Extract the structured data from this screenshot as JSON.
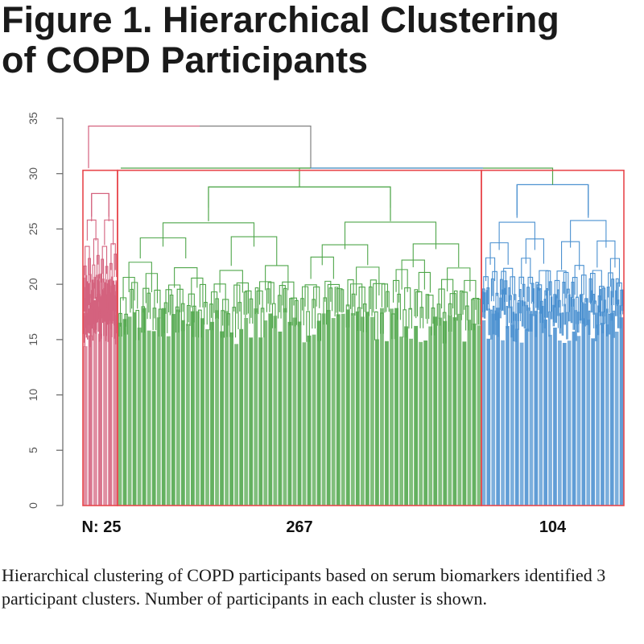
{
  "title_lines": [
    "Figure 1.  Hierarchical Clustering",
    "of COPD Participants"
  ],
  "caption": "Hierarchical clustering of COPD participants  based on serum biomarkers identified 3 participant clusters. Number of participants in each cluster is shown.",
  "chart_data": {
    "type": "dendrogram",
    "ylim": [
      0,
      35
    ],
    "yticks": [
      "0",
      "5",
      "10",
      "15",
      "20",
      "25",
      "30",
      "35"
    ],
    "root_height": 30.5,
    "top_merge_height": 34.3,
    "left_branch_height": 30.5,
    "clusters": [
      {
        "label": "N: 25",
        "count": 25,
        "color": "#d4627e",
        "box_color": "#e8474c",
        "merge_height": 30.3,
        "sub_merges": [
          28.2,
          26.1,
          24.2,
          22.8,
          21.5,
          20.4,
          19.6
        ]
      },
      {
        "label": "267",
        "count": 267,
        "color": "#4fa64a",
        "box_color": "#e8474c",
        "merge_height": 30.3,
        "sub_merges": [
          28.8,
          25.7,
          24.3,
          22.5,
          21.4,
          20.6,
          19.8
        ]
      },
      {
        "label": "104",
        "count": 104,
        "color": "#4a90d0",
        "box_color": "#e8474c",
        "merge_height": 30.3,
        "sub_merges": [
          29.0,
          26.0,
          24.5,
          22.4,
          21.3,
          20.5,
          19.7
        ]
      }
    ],
    "colors": {
      "root": "#808080",
      "cut_box": "#e8474c",
      "axis": "#666666"
    }
  }
}
